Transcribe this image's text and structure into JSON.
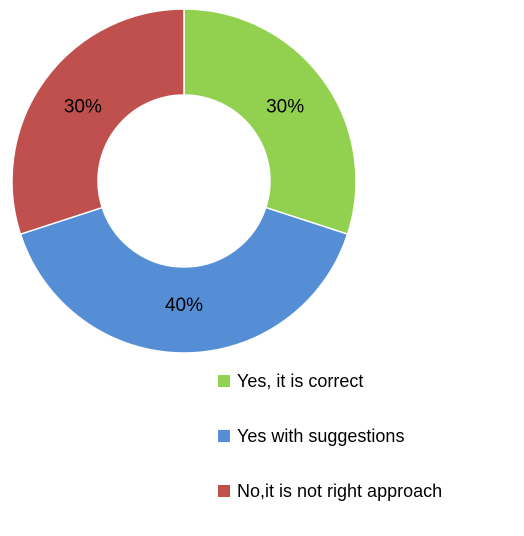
{
  "chart_data": {
    "type": "pie",
    "donut": true,
    "title": "",
    "slices": [
      {
        "label": "Yes, it is correct",
        "value": 30,
        "display": "30%",
        "color": "#92d050"
      },
      {
        "label": "Yes with suggestions",
        "value": 40,
        "display": "40%",
        "color": "#558ed5"
      },
      {
        "label": "No,it is not right approach",
        "value": 30,
        "display": "30%",
        "color": "#c0504d"
      }
    ],
    "legend_position": "bottom-right",
    "start_angle": "12 o'clock",
    "direction": "clockwise"
  }
}
